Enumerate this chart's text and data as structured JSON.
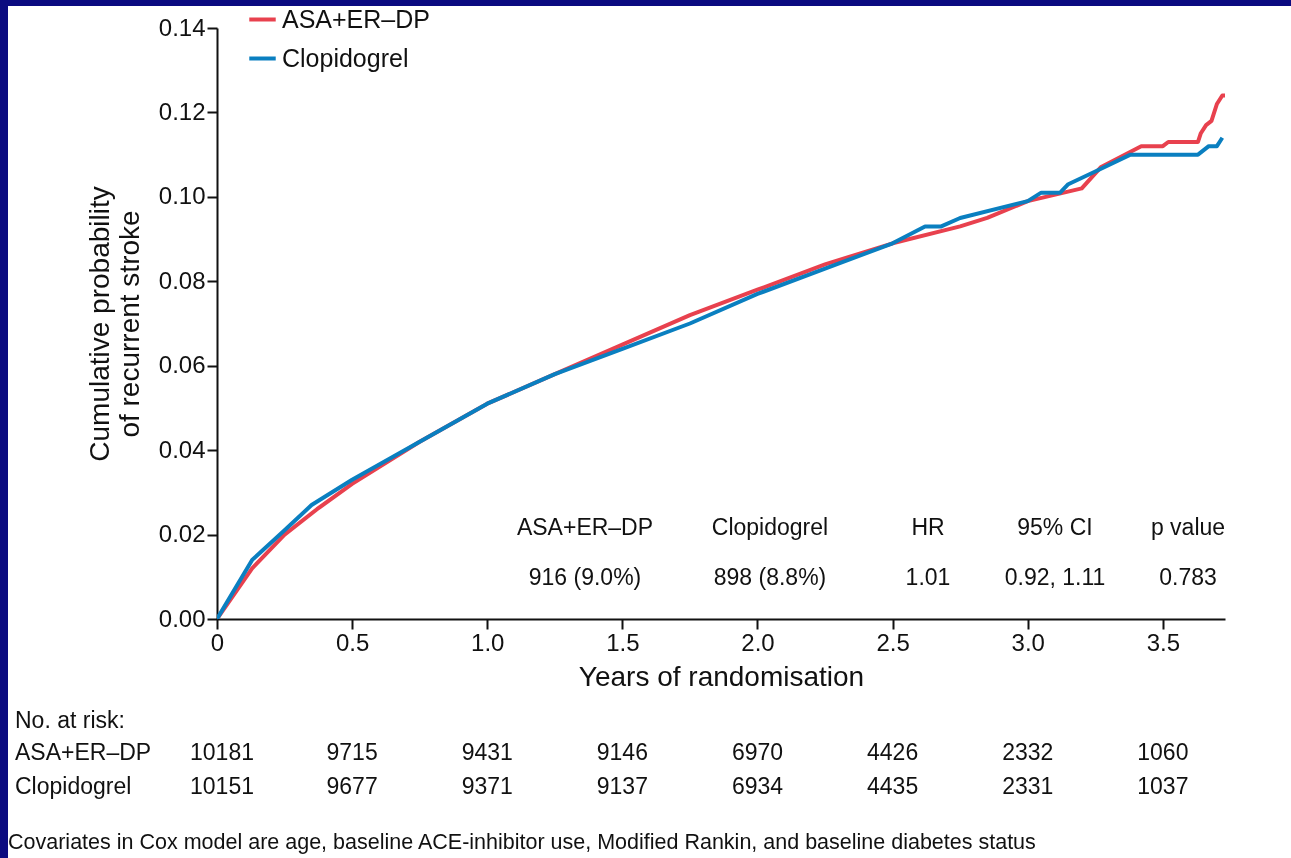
{
  "chart_data": {
    "type": "line",
    "xlabel": "Years of randomisation",
    "ylabel": "Cumulative probability of recurrent stroke",
    "series": [
      {
        "name": "ASA+ER–DP",
        "color": "#e8414e",
        "x": [
          0,
          0.13,
          0.25,
          0.37,
          0.5,
          0.75,
          1.0,
          1.25,
          1.5,
          1.75,
          2.0,
          2.25,
          2.5,
          2.75,
          2.85,
          3.0,
          3.2,
          3.27,
          3.42,
          3.5,
          3.52,
          3.63,
          3.64,
          3.66,
          3.68,
          3.7,
          3.72,
          3.73
        ],
        "values": [
          0,
          0.012,
          0.02,
          0.026,
          0.032,
          0.042,
          0.051,
          0.058,
          0.065,
          0.072,
          0.078,
          0.084,
          0.089,
          0.093,
          0.095,
          0.099,
          0.102,
          0.107,
          0.112,
          0.112,
          0.113,
          0.113,
          0.115,
          0.117,
          0.118,
          0.122,
          0.124,
          0.124
        ]
      },
      {
        "name": "Clopidogrel",
        "color": "#0a7fc0",
        "x": [
          0,
          0.13,
          0.25,
          0.35,
          0.5,
          0.75,
          1.0,
          1.25,
          1.5,
          1.75,
          2.0,
          2.25,
          2.5,
          2.62,
          2.68,
          2.75,
          3.0,
          3.05,
          3.12,
          3.15,
          3.25,
          3.38,
          3.63,
          3.67,
          3.7,
          3.71,
          3.72
        ],
        "values": [
          0,
          0.014,
          0.021,
          0.027,
          0.033,
          0.042,
          0.051,
          0.058,
          0.064,
          0.07,
          0.077,
          0.083,
          0.089,
          0.093,
          0.093,
          0.095,
          0.099,
          0.101,
          0.101,
          0.103,
          0.106,
          0.11,
          0.11,
          0.112,
          0.112,
          0.113,
          0.114
        ]
      }
    ],
    "xlim": [
      0,
      3.73
    ],
    "xticks": [
      0,
      {
        "value": 0.5,
        "label": "0.5"
      },
      {
        "value": 1,
        "label": "1.0"
      },
      {
        "value": 1.5,
        "label": "1.5"
      },
      {
        "value": 2,
        "label": "2.0"
      },
      {
        "value": 2.5,
        "label": "2.5"
      },
      {
        "value": 3,
        "label": "3.0"
      },
      {
        "value": 3.5,
        "label": "3.5"
      }
    ],
    "ylim": [
      0,
      0.14
    ],
    "yticks": [
      {
        "value": 0,
        "label": "0.00"
      },
      0.02,
      0.04,
      0.06,
      0.08,
      {
        "value": 0.1,
        "label": "0.10"
      },
      0.12,
      0.14
    ],
    "grid": false,
    "legend": "top left",
    "annotations": [
      "ASA+ER–DP",
      "Clopidogrel",
      "HR",
      "95% CI",
      "p value",
      "916 (9.0%)",
      "898 (8.8%)",
      "1.01",
      "0.92, 1.11",
      "0.783",
      "No. at risk:",
      "ASA+ER–DP",
      "10181",
      "9715",
      "9431",
      "9146",
      "6970",
      "4426",
      "2332",
      "1060",
      "Clopidogrel",
      "10151",
      "9677",
      "9371",
      "9137",
      "6934",
      "4435",
      "2331",
      "1037",
      "Covariates in Cox model are age, baseline ACE-inhibitor use, Modified Rankin, and baseline diabetes status"
    ]
  }
}
